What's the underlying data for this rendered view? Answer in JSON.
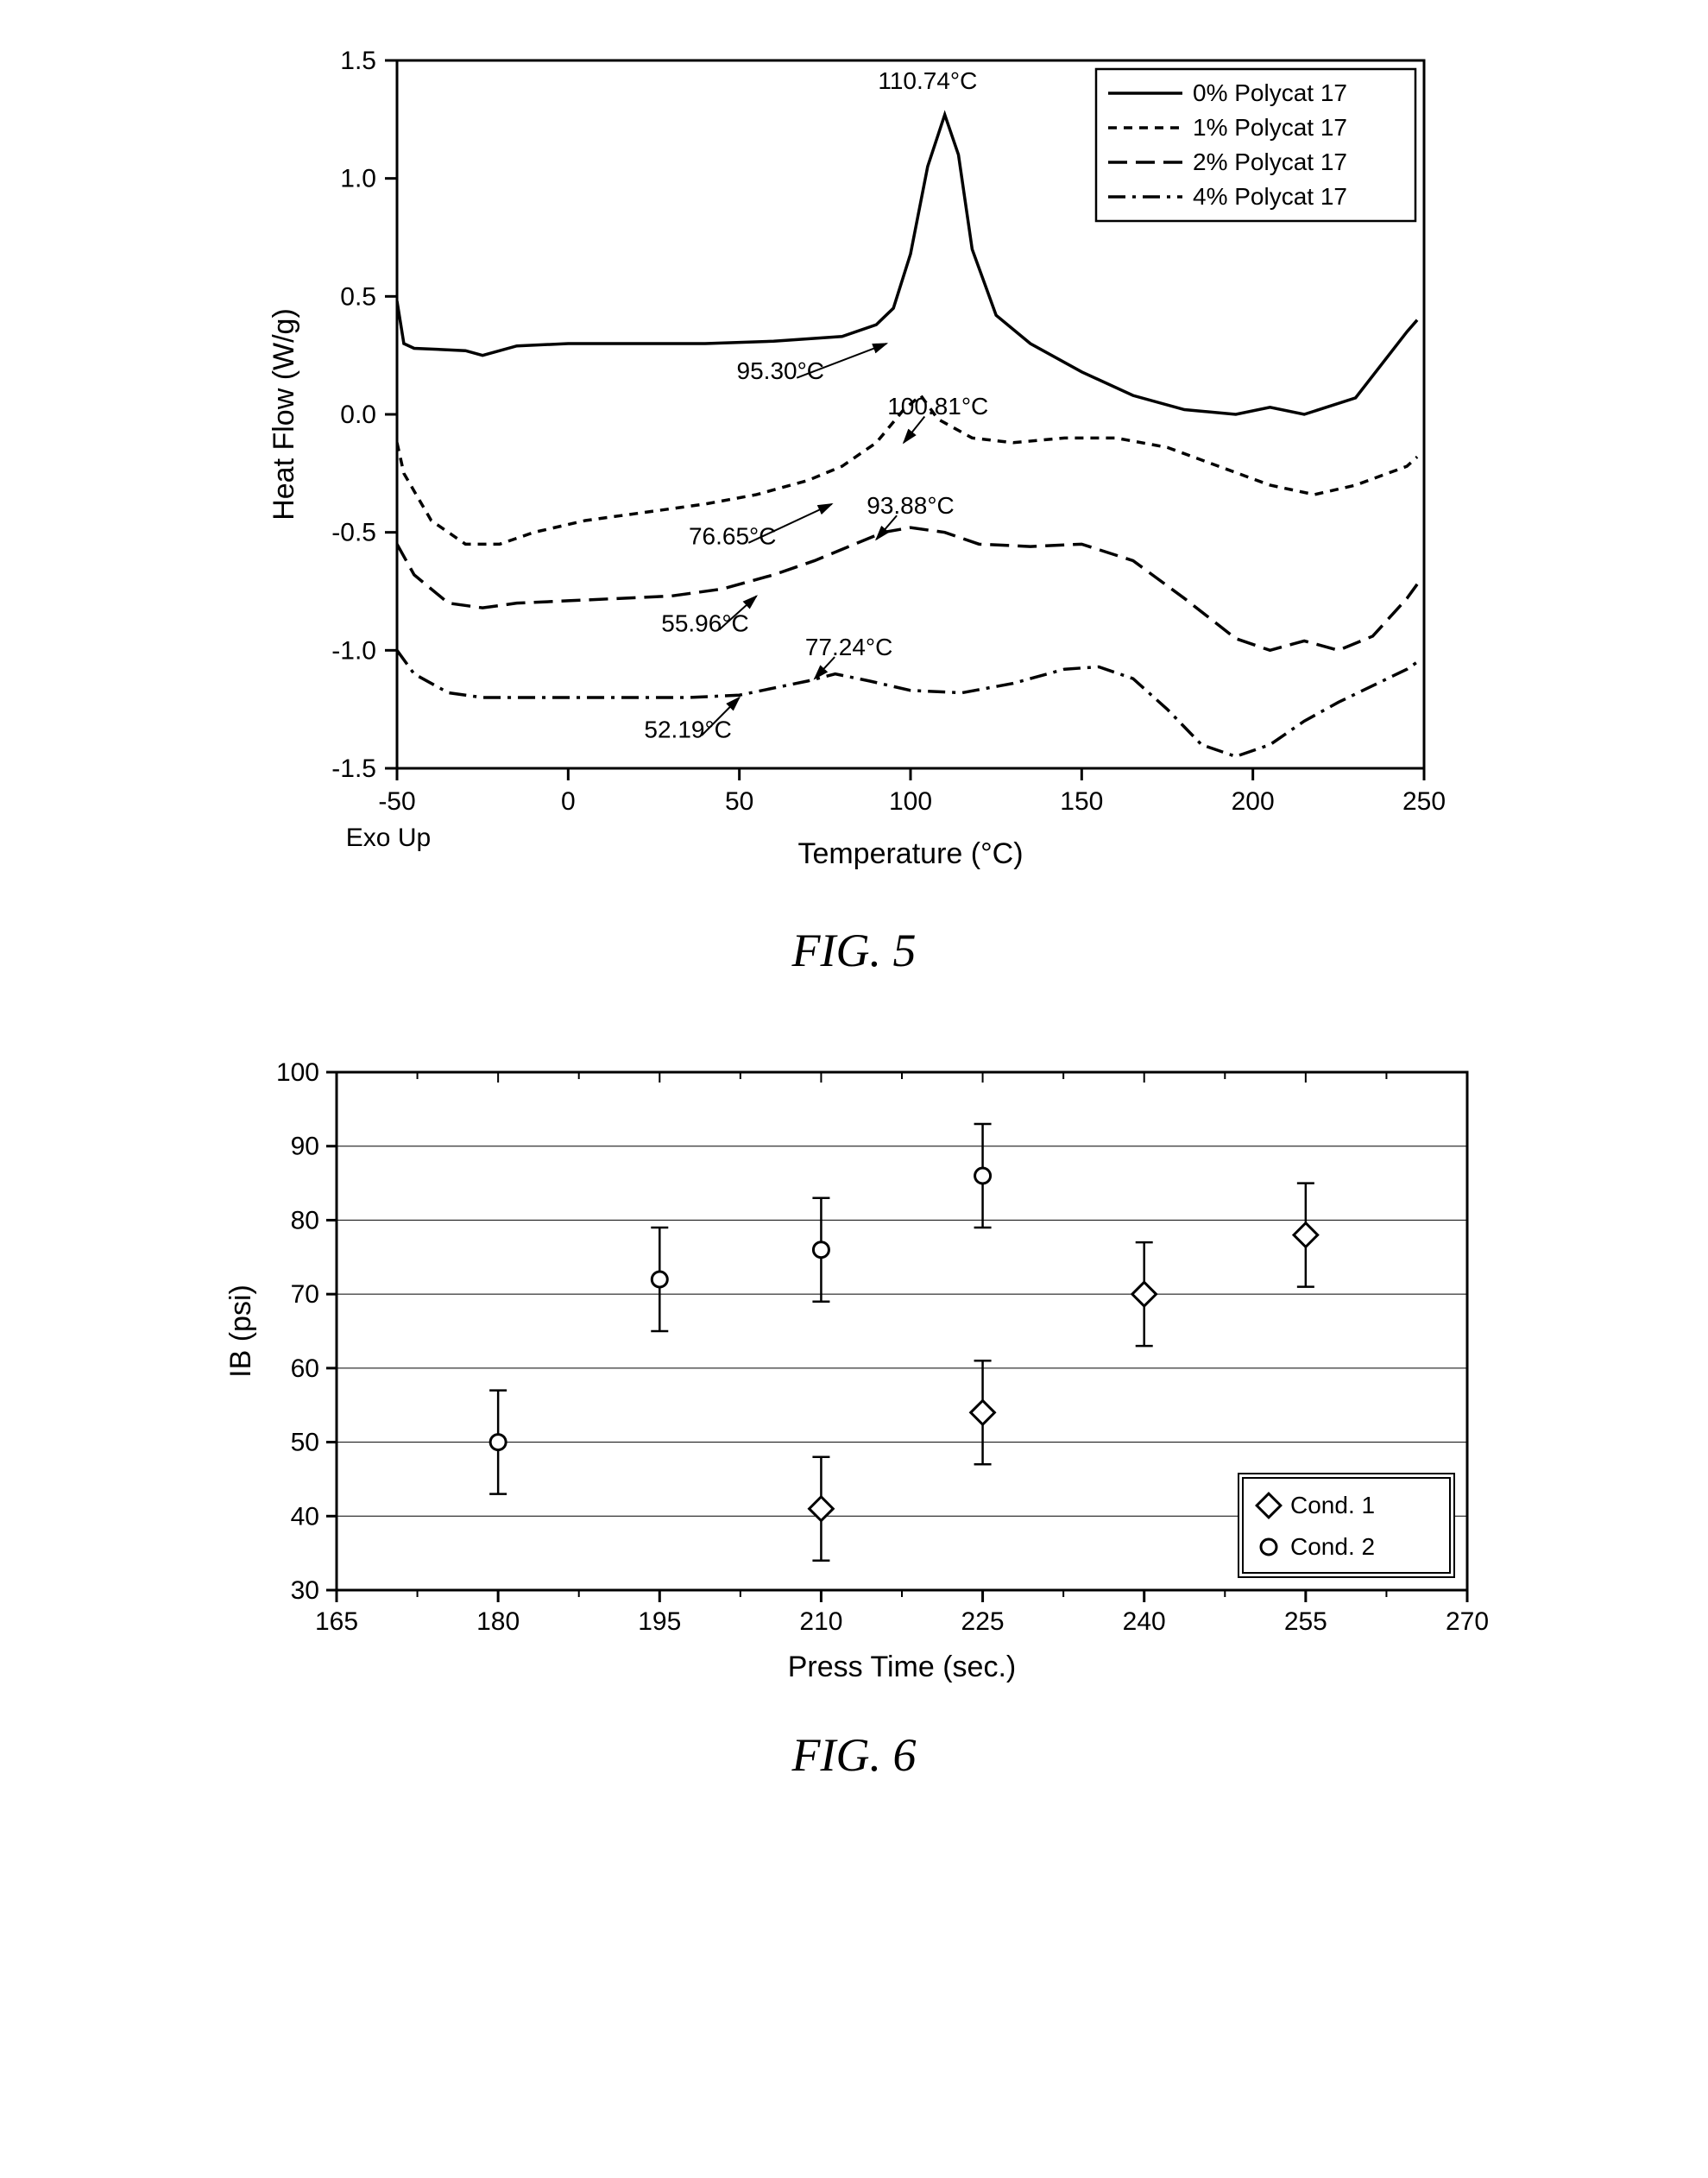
{
  "fig5": {
    "caption": "FIG. 5",
    "type": "line",
    "xlabel": "Temperature (°C)",
    "ylabel": "Heat Flow (W/g)",
    "exo_label": "Exo Up",
    "label_fontsize": 34,
    "tick_fontsize": 30,
    "annotation_fontsize": 28,
    "legend_fontsize": 28,
    "font_family": "Arial, Helvetica, sans-serif",
    "xlim": [
      -50,
      250
    ],
    "ylim": [
      -1.5,
      1.5
    ],
    "xticks": [
      -50,
      0,
      50,
      100,
      150,
      200,
      250
    ],
    "yticks": [
      -1.5,
      -1.0,
      -0.5,
      0.0,
      0.5,
      1.0,
      1.5
    ],
    "background_color": "#ffffff",
    "axis_color": "#000000",
    "legend_border_color": "#000000",
    "line_width": 3.5,
    "colors": {
      "s0": "#000000",
      "s1": "#000000",
      "s2": "#000000",
      "s3": "#000000"
    },
    "dash": {
      "s0": "",
      "s1": "10,8",
      "s2": "22,10",
      "s3": "20,8,4,8"
    },
    "legend_items": [
      {
        "label": "0% Polycat 17",
        "dash": ""
      },
      {
        "label": "1% Polycat 17",
        "dash": "10,8"
      },
      {
        "label": "2% Polycat 17",
        "dash": "22,10"
      },
      {
        "label": "4% Polycat 17",
        "dash": "20,8,4,8"
      }
    ],
    "annotations": [
      {
        "text": "110.74°C",
        "ax": 105,
        "ay": 1.38,
        "tx": 110,
        "ty": 1.12
      },
      {
        "text": "95.30°C",
        "ax": 62,
        "ay": 0.15,
        "tx": 93,
        "ty": 0.3,
        "arrow": true
      },
      {
        "text": "100.81°C",
        "ax": 108,
        "ay": 0.0,
        "tx": 98,
        "ty": -0.12,
        "arrow": true
      },
      {
        "text": "76.65°C",
        "ax": 48,
        "ay": -0.55,
        "tx": 77,
        "ty": -0.38,
        "arrow": true
      },
      {
        "text": "93.88°C",
        "ax": 100,
        "ay": -0.42,
        "tx": 90,
        "ty": -0.53,
        "arrow": true
      },
      {
        "text": "55.96°C",
        "ax": 40,
        "ay": -0.92,
        "tx": 55,
        "ty": -0.77,
        "arrow": true
      },
      {
        "text": "77.24°C",
        "ax": 82,
        "ay": -1.02,
        "tx": 72,
        "ty": -1.12,
        "arrow": true
      },
      {
        "text": "52.19°C",
        "ax": 35,
        "ay": -1.37,
        "tx": 50,
        "ty": -1.2,
        "arrow": true
      }
    ],
    "series": {
      "s0": [
        [
          -50,
          0.48
        ],
        [
          -48,
          0.3
        ],
        [
          -45,
          0.28
        ],
        [
          -30,
          0.27
        ],
        [
          -25,
          0.25
        ],
        [
          -15,
          0.29
        ],
        [
          0,
          0.3
        ],
        [
          20,
          0.3
        ],
        [
          40,
          0.3
        ],
        [
          60,
          0.31
        ],
        [
          80,
          0.33
        ],
        [
          90,
          0.38
        ],
        [
          95,
          0.45
        ],
        [
          100,
          0.68
        ],
        [
          105,
          1.05
        ],
        [
          110,
          1.27
        ],
        [
          114,
          1.1
        ],
        [
          118,
          0.7
        ],
        [
          125,
          0.42
        ],
        [
          135,
          0.3
        ],
        [
          150,
          0.18
        ],
        [
          165,
          0.08
        ],
        [
          180,
          0.02
        ],
        [
          195,
          0.0
        ],
        [
          205,
          0.03
        ],
        [
          215,
          0.0
        ],
        [
          230,
          0.07
        ],
        [
          245,
          0.35
        ],
        [
          248,
          0.4
        ]
      ],
      "s1": [
        [
          -50,
          -0.12
        ],
        [
          -48,
          -0.25
        ],
        [
          -40,
          -0.45
        ],
        [
          -30,
          -0.55
        ],
        [
          -20,
          -0.55
        ],
        [
          -10,
          -0.5
        ],
        [
          5,
          -0.45
        ],
        [
          20,
          -0.42
        ],
        [
          40,
          -0.38
        ],
        [
          55,
          -0.34
        ],
        [
          70,
          -0.28
        ],
        [
          80,
          -0.22
        ],
        [
          90,
          -0.12
        ],
        [
          98,
          0.02
        ],
        [
          103,
          0.08
        ],
        [
          108,
          -0.02
        ],
        [
          118,
          -0.1
        ],
        [
          130,
          -0.12
        ],
        [
          145,
          -0.1
        ],
        [
          160,
          -0.1
        ],
        [
          175,
          -0.14
        ],
        [
          190,
          -0.22
        ],
        [
          205,
          -0.3
        ],
        [
          218,
          -0.34
        ],
        [
          230,
          -0.3
        ],
        [
          245,
          -0.22
        ],
        [
          248,
          -0.18
        ]
      ],
      "s2": [
        [
          -50,
          -0.55
        ],
        [
          -45,
          -0.68
        ],
        [
          -35,
          -0.8
        ],
        [
          -25,
          -0.82
        ],
        [
          -15,
          -0.8
        ],
        [
          0,
          -0.79
        ],
        [
          15,
          -0.78
        ],
        [
          30,
          -0.77
        ],
        [
          45,
          -0.74
        ],
        [
          60,
          -0.68
        ],
        [
          72,
          -0.62
        ],
        [
          82,
          -0.56
        ],
        [
          92,
          -0.5
        ],
        [
          100,
          -0.48
        ],
        [
          110,
          -0.5
        ],
        [
          120,
          -0.55
        ],
        [
          135,
          -0.56
        ],
        [
          150,
          -0.55
        ],
        [
          165,
          -0.62
        ],
        [
          180,
          -0.78
        ],
        [
          195,
          -0.95
        ],
        [
          205,
          -1.0
        ],
        [
          215,
          -0.96
        ],
        [
          225,
          -1.0
        ],
        [
          235,
          -0.94
        ],
        [
          245,
          -0.78
        ],
        [
          248,
          -0.72
        ]
      ],
      "s3": [
        [
          -50,
          -1.0
        ],
        [
          -45,
          -1.1
        ],
        [
          -35,
          -1.18
        ],
        [
          -25,
          -1.2
        ],
        [
          -10,
          -1.2
        ],
        [
          5,
          -1.2
        ],
        [
          20,
          -1.2
        ],
        [
          35,
          -1.2
        ],
        [
          50,
          -1.19
        ],
        [
          60,
          -1.16
        ],
        [
          70,
          -1.13
        ],
        [
          78,
          -1.1
        ],
        [
          88,
          -1.13
        ],
        [
          100,
          -1.17
        ],
        [
          115,
          -1.18
        ],
        [
          130,
          -1.14
        ],
        [
          145,
          -1.08
        ],
        [
          155,
          -1.07
        ],
        [
          165,
          -1.12
        ],
        [
          175,
          -1.25
        ],
        [
          185,
          -1.4
        ],
        [
          195,
          -1.45
        ],
        [
          205,
          -1.4
        ],
        [
          215,
          -1.3
        ],
        [
          225,
          -1.22
        ],
        [
          235,
          -1.15
        ],
        [
          245,
          -1.08
        ],
        [
          248,
          -1.05
        ]
      ]
    }
  },
  "fig6": {
    "caption": "FIG. 6",
    "type": "scatter",
    "xlabel": "Press Time (sec.)",
    "ylabel": "IB (psi)",
    "label_fontsize": 34,
    "tick_fontsize": 30,
    "legend_fontsize": 28,
    "xlim": [
      165,
      270
    ],
    "ylim": [
      30,
      100
    ],
    "xticks": [
      165,
      180,
      195,
      210,
      225,
      240,
      255,
      270
    ],
    "yticks": [
      30,
      40,
      50,
      60,
      70,
      80,
      90,
      100
    ],
    "background_color": "#ffffff",
    "axis_color": "#000000",
    "grid_color": "#000000",
    "grid_width": 1,
    "errorbar_width": 2.5,
    "marker_size": 18,
    "marker_stroke": 3,
    "marker_fill": "#ffffff",
    "marker_color": "#000000",
    "legend_items": [
      {
        "label": "Cond. 1",
        "marker": "diamond"
      },
      {
        "label": "Cond. 2",
        "marker": "circle"
      }
    ],
    "series": {
      "cond1": {
        "marker": "diamond",
        "points": [
          {
            "x": 210,
            "y": 41,
            "err": 7
          },
          {
            "x": 225,
            "y": 54,
            "err": 7
          },
          {
            "x": 240,
            "y": 70,
            "err": 7
          },
          {
            "x": 255,
            "y": 78,
            "err": 7
          }
        ]
      },
      "cond2": {
        "marker": "circle",
        "points": [
          {
            "x": 180,
            "y": 50,
            "err": 7
          },
          {
            "x": 195,
            "y": 72,
            "err": 7
          },
          {
            "x": 210,
            "y": 76,
            "err": 7
          },
          {
            "x": 225,
            "y": 86,
            "err": 7
          }
        ]
      }
    }
  }
}
